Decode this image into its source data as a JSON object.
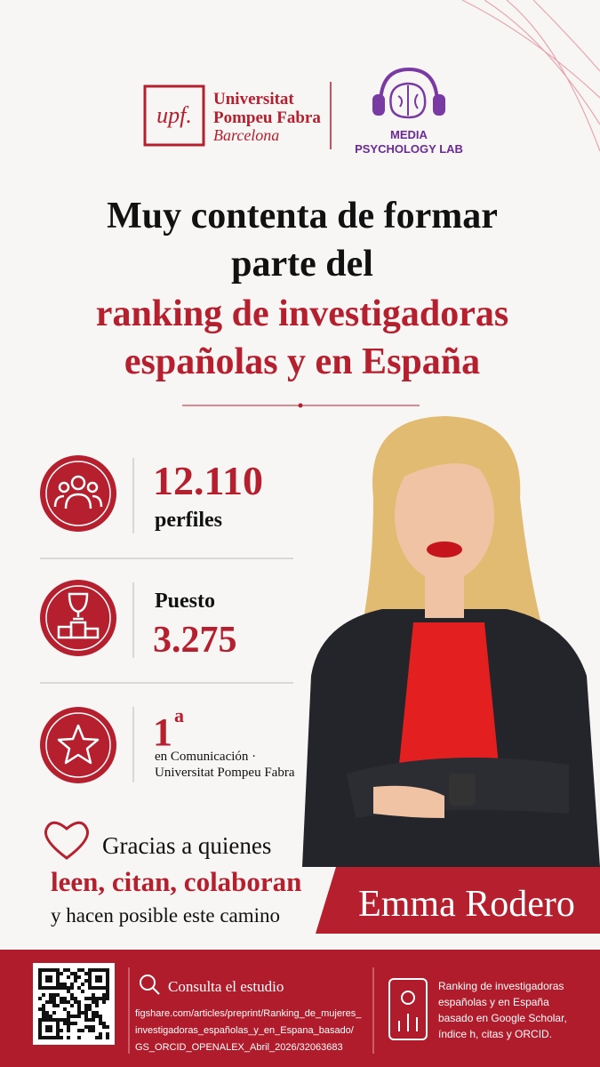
{
  "header": {
    "logo_mark": "upf.",
    "university": [
      "Universitat",
      "Pompeu Fabra",
      "Barcelona"
    ],
    "lab": [
      "MEDIA",
      "PSYCHOLOGY LAB"
    ]
  },
  "headline": {
    "lines": [
      "Muy contenta de formar",
      "parte del"
    ],
    "highlight": [
      "ranking de investigadoras",
      "españolas y en España"
    ]
  },
  "stats": [
    {
      "value": "12.110",
      "label": "perfiles"
    },
    {
      "label": "Puesto",
      "value": "3.275"
    },
    {
      "value": "1",
      "sup": "a",
      "label": "en Comunicación ·",
      "sublabel": "Universitat Pompeu Fabra"
    }
  ],
  "thanks": {
    "line1": "Gracias a quienes",
    "line2": "leen, citan, colaboran",
    "line3": "y hacen posible este camino"
  },
  "name": "Emma Rodero",
  "footer": {
    "study_title": "Consulta el estudio",
    "url_lines": [
      "figshare.com/articles/preprint/Ranking_de_mujeres_",
      "investigadoras_españolas_y_en_Espana_basado/",
      "GS_ORCID_OPENALEX_Abril_2026/32063683"
    ],
    "description": [
      "Ranking de investigadoras",
      "españolas y en España",
      "basado en Google Scholar,",
      "índice h, citas y ORCID."
    ]
  }
}
